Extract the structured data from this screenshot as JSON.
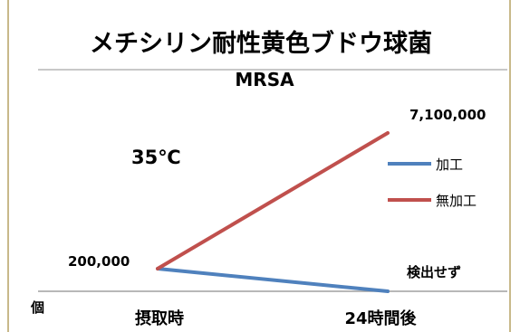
{
  "chart_data": {
    "type": "line",
    "title": "メチシリン耐性黄色ブドウ球菌",
    "subtitle": "MRSA",
    "annotation": "35℃",
    "ylabel": "個",
    "categories": [
      "摂取時",
      "24時間後"
    ],
    "series": [
      {
        "name": "加工",
        "values": [
          200000,
          0
        ],
        "color": "#4f81bd"
      },
      {
        "name": "無加工",
        "values": [
          200000,
          7100000
        ],
        "color": "#c0504d"
      }
    ],
    "data_labels": {
      "start": "200,000",
      "end_untreated": "7,100,000",
      "end_treated": "検出せず"
    },
    "ylim": [
      0,
      7100000
    ],
    "grid": false,
    "legend": "right"
  }
}
